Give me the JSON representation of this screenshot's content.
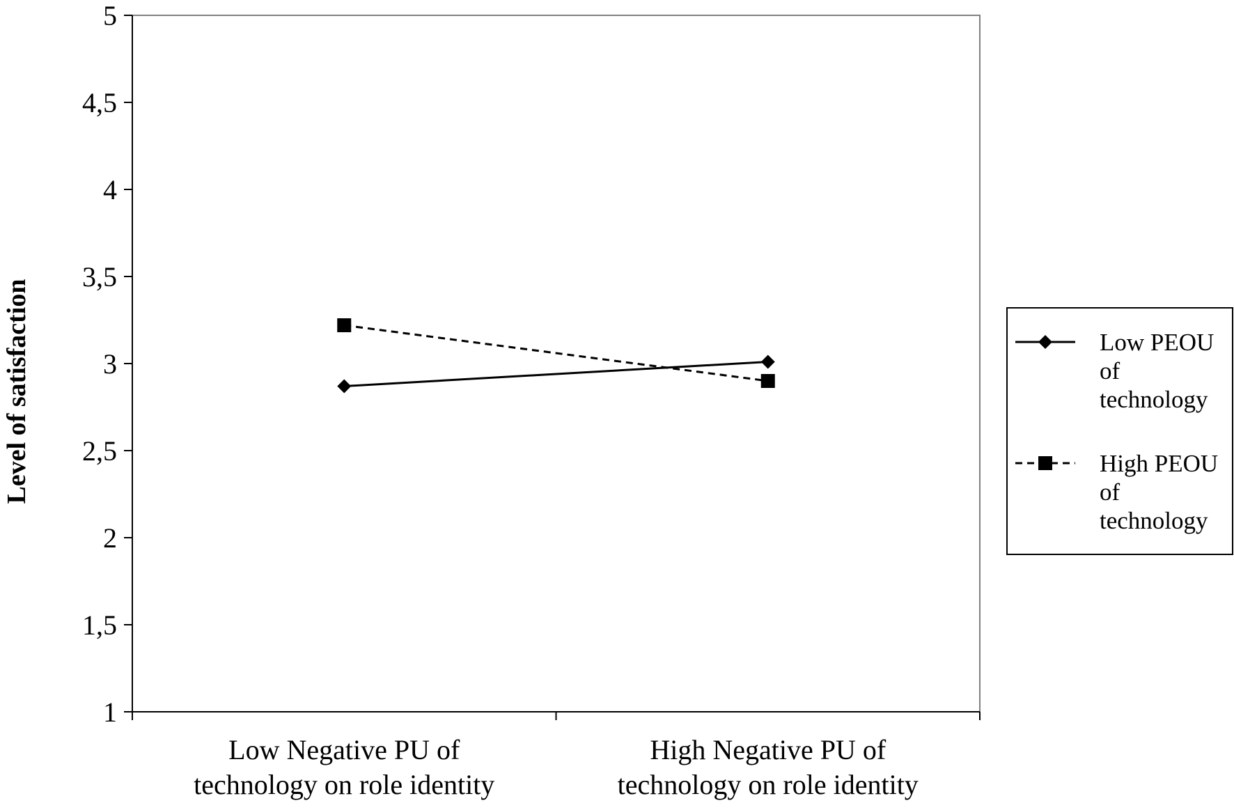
{
  "chart_data": {
    "type": "line",
    "title": "",
    "xlabel": "",
    "ylabel": "Level of satisfaction",
    "ylim": [
      1,
      5
    ],
    "yticks": [
      "1",
      "1,5",
      "2",
      "2,5",
      "3",
      "3,5",
      "4",
      "4,5",
      "5"
    ],
    "categories": [
      [
        "Low Negative PU of",
        "technology on role identity"
      ],
      [
        "High Negative PU of",
        "technology on role identity"
      ]
    ],
    "series": [
      {
        "name_lines": [
          "Low PEOU",
          "of",
          "technology"
        ],
        "values": [
          2.87,
          3.01
        ],
        "marker": "diamond",
        "line": "solid",
        "color": "#000000"
      },
      {
        "name_lines": [
          "High PEOU",
          "of",
          "technology"
        ],
        "values": [
          3.22,
          2.9
        ],
        "marker": "square",
        "line": "dashed",
        "color": "#000000"
      }
    ],
    "legend_position": "right",
    "grid": false
  }
}
